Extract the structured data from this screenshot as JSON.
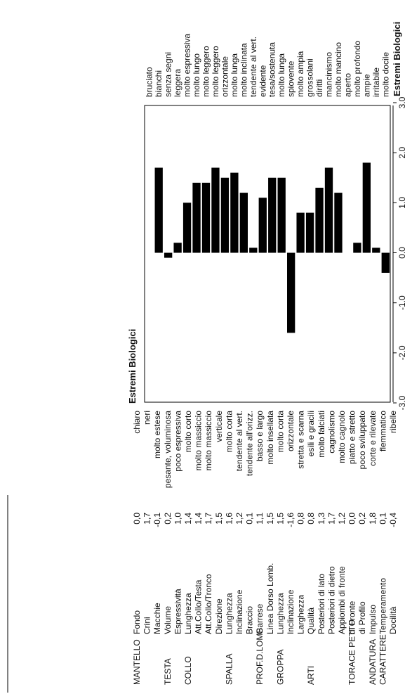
{
  "chart_data": {
    "type": "bar",
    "headers": {
      "left_extremes": "Estremi Biologici",
      "right_extremes": "Estremi Biologici"
    },
    "ylim": [
      -3.0,
      3.0
    ],
    "ticks": [
      "-3.0",
      "-2.0",
      "-1.0",
      "0.0",
      "1.0",
      "2.0",
      "3.0"
    ],
    "tick_values": [
      -3,
      -2,
      -1,
      0,
      1,
      2,
      3
    ],
    "grid": false,
    "bar_color": "#000000",
    "rows": [
      {
        "group": "MANTELLO",
        "trait": "Fondo",
        "label": "0,0",
        "value": 0.0,
        "low": "chiaro",
        "high": "bruciato"
      },
      {
        "group": "",
        "trait": "Crini",
        "label": "1,7",
        "value": 1.7,
        "low": "neri",
        "high": "bianchi"
      },
      {
        "group": "",
        "trait": "Macchie",
        "label": "-0,1",
        "value": -0.1,
        "low": "molto estese",
        "high": "senza segni"
      },
      {
        "group": "TESTA",
        "trait": "Volume",
        "label": "0,2",
        "value": 0.2,
        "low": "pesante, voluminosa",
        "high": "leggera"
      },
      {
        "group": "",
        "trait": "Espressività",
        "label": "1,0",
        "value": 1.0,
        "low": "poco espressiva",
        "high": "molto espressiva"
      },
      {
        "group": "COLLO",
        "trait": "Lunghezza",
        "label": "1,4",
        "value": 1.4,
        "low": "molto corto",
        "high": "molto lungo"
      },
      {
        "group": "",
        "trait": "Att.Collo/Testa",
        "label": "1,4",
        "value": 1.4,
        "low": "molto massiccio",
        "high": "molto leggero"
      },
      {
        "group": "",
        "trait": "Att.Collo/Tronco",
        "label": "1,7",
        "value": 1.7,
        "low": "molto massiccio",
        "high": "molto leggero"
      },
      {
        "group": "",
        "trait": "Direzione",
        "label": "1,5",
        "value": 1.5,
        "low": "verticale",
        "high": "orizzontale"
      },
      {
        "group": "SPALLA",
        "trait": "Lunghezza",
        "label": "1,6",
        "value": 1.6,
        "low": "molto corta",
        "high": "molto lunga"
      },
      {
        "group": "",
        "trait": "Inclinazione",
        "label": "1,2",
        "value": 1.2,
        "low": "tendente al vert.",
        "high": "molto inclinata"
      },
      {
        "group": "",
        "trait": "Braccio",
        "label": "0,1",
        "value": 0.1,
        "low": "tendente all'orizz.",
        "high": "tendente al vert."
      },
      {
        "group": "PROF.D.LOMB.",
        "trait": "Garrese",
        "label": "1,1",
        "value": 1.1,
        "low": "basso e largo",
        "high": "evidente"
      },
      {
        "group": "",
        "trait": "Linea Dorso Lomb.",
        "label": "1,5",
        "value": 1.5,
        "low": "molto insellata",
        "high": "tesa/sostenuta"
      },
      {
        "group": "GROPPA",
        "trait": "Lunghezza",
        "label": "1,5",
        "value": 1.5,
        "low": "molto corta",
        "high": "molto lunga"
      },
      {
        "group": "",
        "trait": "Inclinazione",
        "label": "-1,6",
        "value": -1.6,
        "low": "orizzontale",
        "high": "spiovente"
      },
      {
        "group": "",
        "trait": "Larghezza",
        "label": "0,8",
        "value": 0.8,
        "low": "stretta e scarna",
        "high": "molto ampia"
      },
      {
        "group": "ARTI",
        "trait": "Qualità",
        "label": "0,8",
        "value": 0.8,
        "low": "esili e gracili",
        "high": "grossolani"
      },
      {
        "group": "",
        "trait": "Posteriori di lato",
        "label": "1,3",
        "value": 1.3,
        "low": "molto falciati",
        "high": "diritti"
      },
      {
        "group": "",
        "trait": "Posteriori di dietro",
        "label": "1,7",
        "value": 1.7,
        "low": "cagnolismo",
        "high": "mancinismo"
      },
      {
        "group": "",
        "trait": "Appiombi di fronte",
        "label": "1,2",
        "value": 1.2,
        "low": "molto cagnolo",
        "high": "molto mancino"
      },
      {
        "group": "TORACE PETTO",
        "trait": "di Fronte",
        "label": "0,0",
        "value": 0.0,
        "low": "piatto e stretto",
        "high": "aperto"
      },
      {
        "group": "",
        "trait": "di Profilo",
        "label": "0,2",
        "value": 0.2,
        "low": "poco sviluppato",
        "high": "molto profondo"
      },
      {
        "group": "ANDATURA",
        "trait": "Impulso",
        "label": "1,8",
        "value": 1.8,
        "low": "corte e rilevate",
        "high": "ampie"
      },
      {
        "group": "CARATTERE",
        "trait": "Temperamento",
        "label": "0,1",
        "value": 0.1,
        "low": "flemmatico",
        "high": "irritabile"
      },
      {
        "group": "",
        "trait": "Docilità",
        "label": "-0,4",
        "value": -0.4,
        "low": "ribelle",
        "high": "molto docile"
      }
    ]
  }
}
